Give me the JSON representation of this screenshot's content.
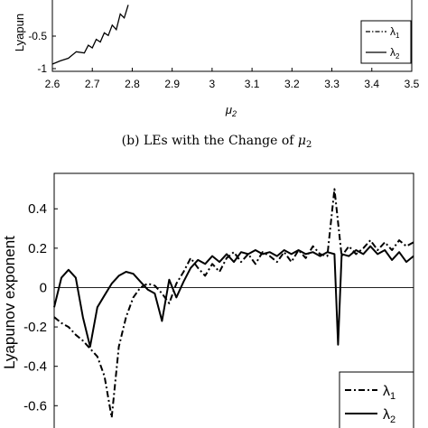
{
  "chart_data": [
    {
      "type": "line",
      "ylabel": "Lyapunov exponent",
      "ylabel_visible": "Lyapun",
      "xlabel": "μ",
      "xlabel_sub": "2",
      "xlim": [
        2.6,
        3.5
      ],
      "ylim": [
        -1,
        0
      ],
      "x_ticks": [
        "2.6",
        "2.7",
        "2.8",
        "2.9",
        "3",
        "3.1",
        "3.2",
        "3.3",
        "3.4",
        "3.5"
      ],
      "y_ticks": [
        "-0.5",
        "-1"
      ],
      "caption_prefix": "(b) LEs with the Change of ",
      "caption_math": "μ",
      "caption_sub": "2",
      "legend": {
        "position": "right",
        "entries": [
          {
            "base": "λ",
            "sub": "1"
          },
          {
            "base": "λ",
            "sub": "2"
          }
        ]
      },
      "series": [
        {
          "name": "λ2",
          "style": "solid",
          "x": [
            2.6,
            2.62,
            2.64,
            2.66,
            2.68,
            2.69,
            2.7,
            2.71,
            2.72,
            2.73,
            2.74,
            2.75,
            2.76,
            2.77,
            2.78,
            2.79
          ],
          "y": [
            -0.93,
            -0.88,
            -0.84,
            -0.74,
            -0.76,
            -0.64,
            -0.68,
            -0.55,
            -0.59,
            -0.45,
            -0.49,
            -0.33,
            -0.4,
            -0.16,
            -0.22,
            -0.02
          ]
        }
      ]
    },
    {
      "type": "line",
      "ylabel": "Lyapunov exponent",
      "xlim": [
        0,
        100
      ],
      "ylim": [
        -0.75,
        0.58
      ],
      "y_tick_values": [
        0.4,
        0.2,
        0,
        -0.2,
        -0.4,
        -0.6
      ],
      "y_ticks": [
        "0.4",
        "0.2",
        "0",
        "-0.2",
        "-0.4",
        "-0.6"
      ],
      "zero_line": true,
      "legend": {
        "position": "bottom-right",
        "entries": [
          {
            "base": "λ",
            "sub": "1"
          },
          {
            "base": "λ",
            "sub": "2"
          }
        ]
      },
      "series": [
        {
          "name": "λ1",
          "style": "dashdot",
          "x": [
            0,
            2,
            4,
            6,
            8,
            10,
            12,
            14,
            16,
            18,
            20,
            22,
            24,
            26,
            28,
            30,
            32,
            34,
            36,
            38,
            40,
            42,
            44,
            46,
            48,
            50,
            52,
            54,
            56,
            58,
            60,
            62,
            64,
            66,
            68,
            70,
            72,
            74,
            76,
            78,
            80,
            82,
            84,
            86,
            88,
            90,
            92,
            94,
            96,
            98,
            100
          ],
          "y": [
            -0.15,
            -0.18,
            -0.2,
            -0.24,
            -0.27,
            -0.31,
            -0.35,
            -0.45,
            -0.66,
            -0.3,
            -0.15,
            -0.05,
            0.0,
            0.02,
            0.01,
            -0.03,
            -0.08,
            0.02,
            0.08,
            0.15,
            0.1,
            0.06,
            0.12,
            0.08,
            0.15,
            0.18,
            0.13,
            0.17,
            0.12,
            0.18,
            0.16,
            0.13,
            0.18,
            0.13,
            0.19,
            0.15,
            0.21,
            0.17,
            0.16,
            0.5,
            0.16,
            0.21,
            0.17,
            0.2,
            0.24,
            0.19,
            0.23,
            0.19,
            0.24,
            0.21,
            0.23
          ]
        },
        {
          "name": "λ2",
          "style": "solid",
          "x": [
            0,
            2,
            4,
            6,
            8,
            10,
            12,
            14,
            16,
            18,
            20,
            22,
            24,
            26,
            28,
            30,
            32,
            34,
            36,
            38,
            40,
            42,
            44,
            46,
            48,
            50,
            52,
            54,
            56,
            58,
            60,
            62,
            64,
            66,
            68,
            70,
            72,
            74,
            76,
            78,
            79,
            80,
            82,
            84,
            86,
            88,
            90,
            92,
            94,
            96,
            98,
            100
          ],
          "y": [
            -0.1,
            0.05,
            0.09,
            0.05,
            -0.15,
            -0.3,
            -0.1,
            -0.04,
            0.02,
            0.06,
            0.08,
            0.07,
            0.03,
            -0.01,
            -0.03,
            -0.17,
            0.04,
            -0.05,
            0.03,
            0.1,
            0.14,
            0.12,
            0.16,
            0.13,
            0.17,
            0.13,
            0.18,
            0.17,
            0.19,
            0.17,
            0.18,
            0.16,
            0.19,
            0.17,
            0.19,
            0.17,
            0.18,
            0.16,
            0.18,
            0.17,
            -0.29,
            0.17,
            0.16,
            0.19,
            0.17,
            0.21,
            0.17,
            0.19,
            0.14,
            0.18,
            0.13,
            0.16
          ]
        }
      ]
    }
  ]
}
